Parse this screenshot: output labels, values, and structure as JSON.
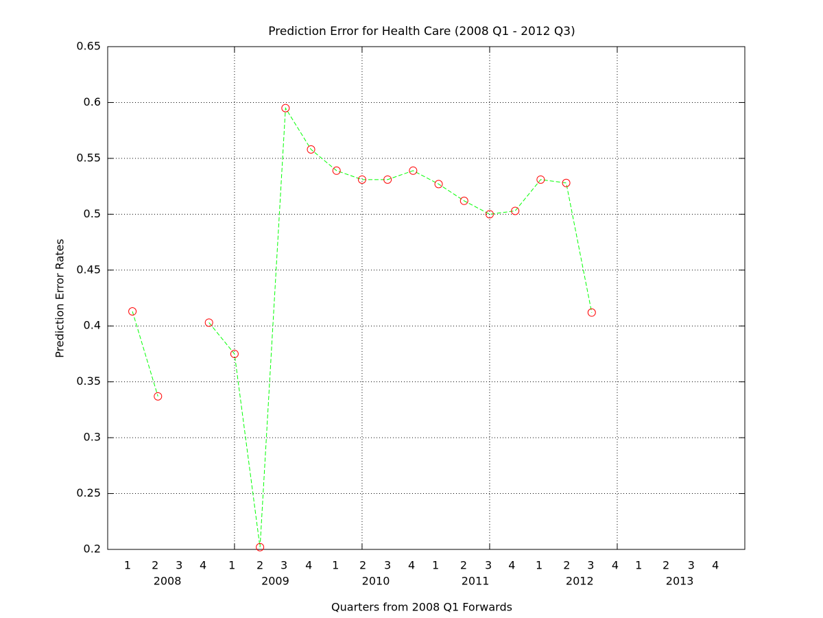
{
  "chart_data": {
    "type": "line",
    "title": "Prediction Error for Health Care (2008 Q1 - 2012 Q3)",
    "x_label": "Quarters from 2008 Q1 Forwards",
    "y_label": "Prediction Error Rates",
    "x": [
      0,
      1,
      2,
      3,
      4,
      5,
      6,
      7,
      8,
      9,
      10,
      11,
      12,
      13,
      14,
      15,
      16,
      17,
      18
    ],
    "values": [
      0.413,
      0.337,
      null,
      0.403,
      0.375,
      0.202,
      0.595,
      0.558,
      0.539,
      0.531,
      0.531,
      0.539,
      0.527,
      0.512,
      0.5,
      0.503,
      0.531,
      0.528,
      0.412
    ],
    "color": "#00ff00",
    "marker_color": "#ff0000",
    "xlim": [
      -0.97,
      24
    ],
    "ylim": [
      0.2,
      0.65
    ],
    "yticks": [
      0.2,
      0.25,
      0.3,
      0.35,
      0.4,
      0.45,
      0.5,
      0.55,
      0.6,
      0.65
    ],
    "xgrid": [
      4,
      9,
      14,
      19
    ],
    "xticks": [
      {
        "value": -0.19,
        "label": "1"
      },
      {
        "value": 0.89,
        "label": "2"
      },
      {
        "value": 1.83,
        "label": "3"
      },
      {
        "value": 2.77,
        "label": "4"
      },
      {
        "value": 3.9,
        "label": "1"
      },
      {
        "value": 5,
        "label": "2"
      },
      {
        "value": 5.94,
        "label": "3"
      },
      {
        "value": 6.91,
        "label": "4"
      },
      {
        "value": 7.96,
        "label": "1"
      },
      {
        "value": 9.03,
        "label": "2"
      },
      {
        "value": 10,
        "label": "3"
      },
      {
        "value": 10.94,
        "label": "4"
      },
      {
        "value": 11.88,
        "label": "1"
      },
      {
        "value": 12.98,
        "label": "2"
      },
      {
        "value": 13.95,
        "label": "3"
      },
      {
        "value": 14.87,
        "label": "4"
      },
      {
        "value": 15.94,
        "label": "1"
      },
      {
        "value": 17.02,
        "label": "2"
      },
      {
        "value": 17.96,
        "label": "3"
      },
      {
        "value": 18.92,
        "label": "4"
      },
      {
        "value": 19.84,
        "label": "1"
      },
      {
        "value": 20.91,
        "label": "2"
      },
      {
        "value": 21.9,
        "label": "3"
      },
      {
        "value": 22.85,
        "label": "4"
      }
    ],
    "year_labels": [
      {
        "value": 1.37,
        "label": "2008"
      },
      {
        "value": 5.6,
        "label": "2009"
      },
      {
        "value": 9.54,
        "label": "2010"
      },
      {
        "value": 13.44,
        "label": "2011"
      },
      {
        "value": 17.53,
        "label": "2012"
      },
      {
        "value": 21.45,
        "label": "2013"
      }
    ],
    "grid": true
  }
}
